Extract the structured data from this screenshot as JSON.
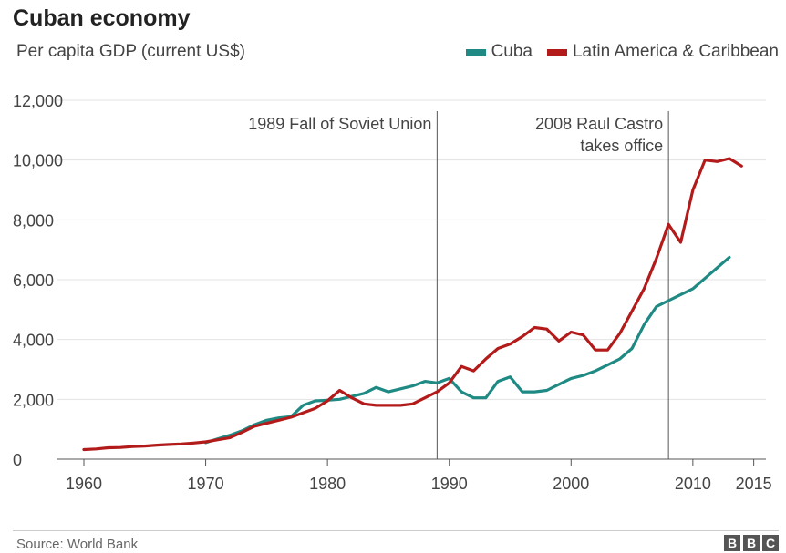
{
  "title": "Cuban economy",
  "subtitle": "Per capita GDP (current US$)",
  "source": "Source: World Bank",
  "logo_text": "BBC",
  "chart_data": {
    "type": "line",
    "title": "Cuban economy",
    "subtitle": "Per capita GDP (current US$)",
    "xlabel": "",
    "ylabel": "",
    "xlim": [
      1960,
      2016
    ],
    "ylim": [
      0,
      12000
    ],
    "grid": true,
    "legend_position": "top-right",
    "x_ticks": [
      1960,
      1970,
      1980,
      1990,
      2000,
      2010,
      2015
    ],
    "x_tick_labels": [
      "1960",
      "1970",
      "1980",
      "1990",
      "2000",
      "2010",
      "2015"
    ],
    "y_ticks": [
      0,
      2000,
      4000,
      6000,
      8000,
      10000,
      12000
    ],
    "y_tick_labels": [
      "0",
      "2,000",
      "4,000",
      "6,000",
      "8,000",
      "10,000",
      "12,000"
    ],
    "series": [
      {
        "name": "Cuba",
        "color": "#1f8a84",
        "x": [
          1970,
          1971,
          1972,
          1973,
          1974,
          1975,
          1976,
          1977,
          1978,
          1979,
          1980,
          1981,
          1982,
          1983,
          1984,
          1985,
          1986,
          1987,
          1988,
          1989,
          1990,
          1991,
          1992,
          1993,
          1994,
          1995,
          1996,
          1997,
          1998,
          1999,
          2000,
          2001,
          2002,
          2003,
          2004,
          2005,
          2006,
          2007,
          2008,
          2009,
          2010,
          2011,
          2012,
          2013,
          2014
        ],
        "values": [
          550,
          680,
          800,
          950,
          1150,
          1300,
          1380,
          1420,
          1800,
          1950,
          1970,
          2000,
          2100,
          2200,
          2400,
          2250,
          2350,
          2450,
          2600,
          2550,
          2700,
          2250,
          2050,
          2050,
          2600,
          2750,
          2250,
          2250,
          2300,
          2500,
          2700,
          2800,
          2950,
          3150,
          3350,
          3700,
          4500,
          5100,
          5300,
          5500,
          5700,
          6050,
          6400,
          6750,
          null
        ]
      },
      {
        "name": "Latin America & Caribbean",
        "color": "#b31b1b",
        "x": [
          1960,
          1961,
          1962,
          1963,
          1964,
          1965,
          1966,
          1967,
          1968,
          1969,
          1970,
          1971,
          1972,
          1973,
          1974,
          1975,
          1976,
          1977,
          1978,
          1979,
          1980,
          1981,
          1982,
          1983,
          1984,
          1985,
          1986,
          1987,
          1988,
          1989,
          1990,
          1991,
          1992,
          1993,
          1994,
          1995,
          1996,
          1997,
          1998,
          1999,
          2000,
          2001,
          2002,
          2003,
          2004,
          2005,
          2006,
          2007,
          2008,
          2009,
          2010,
          2011,
          2012,
          2013,
          2014,
          2015
        ],
        "values": [
          320,
          340,
          380,
          390,
          420,
          440,
          470,
          490,
          510,
          540,
          580,
          650,
          720,
          900,
          1100,
          1200,
          1300,
          1400,
          1550,
          1700,
          1950,
          2300,
          2050,
          1850,
          1800,
          1800,
          1800,
          1850,
          2050,
          2250,
          2550,
          3100,
          2950,
          3350,
          3700,
          3850,
          4100,
          4400,
          4350,
          3950,
          4250,
          4150,
          3650,
          3650,
          4200,
          4950,
          5700,
          6700,
          7850,
          7250,
          9000,
          10000,
          9950,
          10050,
          9800,
          null
        ]
      }
    ],
    "annotations": [
      {
        "x": 1989,
        "label_lines": [
          "1989 Fall of Soviet Union"
        ]
      },
      {
        "x": 2008,
        "label_lines": [
          "2008 Raul Castro",
          "takes office"
        ]
      }
    ]
  }
}
